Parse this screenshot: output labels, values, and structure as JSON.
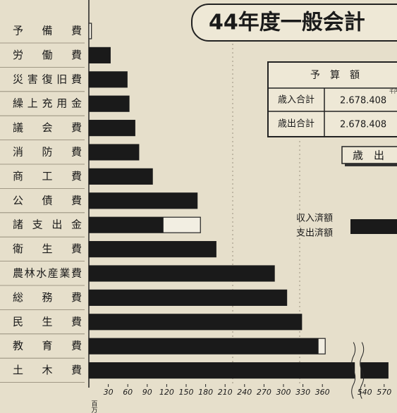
{
  "chart_data": {
    "type": "bar",
    "orientation": "horizontal",
    "categories": [
      "予備費",
      "労働費",
      "災害復旧費",
      "繰上充用金",
      "議会費",
      "消防費",
      "商工費",
      "公債費",
      "諸支出金",
      "衛生費",
      "農林水産業費",
      "総務費",
      "民生費",
      "教育費",
      "土木費"
    ],
    "series": [
      {
        "color": "none",
        "values": [
          4,
          33,
          59,
          62,
          71,
          77,
          98,
          167,
          172,
          196,
          286,
          305,
          328,
          372,
          576
        ]
      },
      {
        "color": "#1a1a1a",
        "values": [
          0,
          33,
          59,
          62,
          71,
          77,
          98,
          167,
          115,
          196,
          286,
          305,
          328,
          354,
          576
        ]
      }
    ],
    "xlim": [
      0,
      580
    ],
    "xticks": [
      30,
      60,
      90,
      120,
      150,
      180,
      210,
      240,
      270,
      300,
      330,
      360,
      540,
      570
    ],
    "axis_break": [
      360,
      540
    ],
    "x_unit": "百万円",
    "legend": [
      "収入済額",
      "支出済額"
    ]
  },
  "header": {
    "title": "44年度一般会計"
  },
  "table": {
    "header": "予　算　額",
    "unit": "千円",
    "rows": [
      [
        "歳入合計",
        "2.678.408"
      ],
      [
        "歳出合計",
        "2.678.408"
      ]
    ]
  },
  "section_tag": "歳　出"
}
